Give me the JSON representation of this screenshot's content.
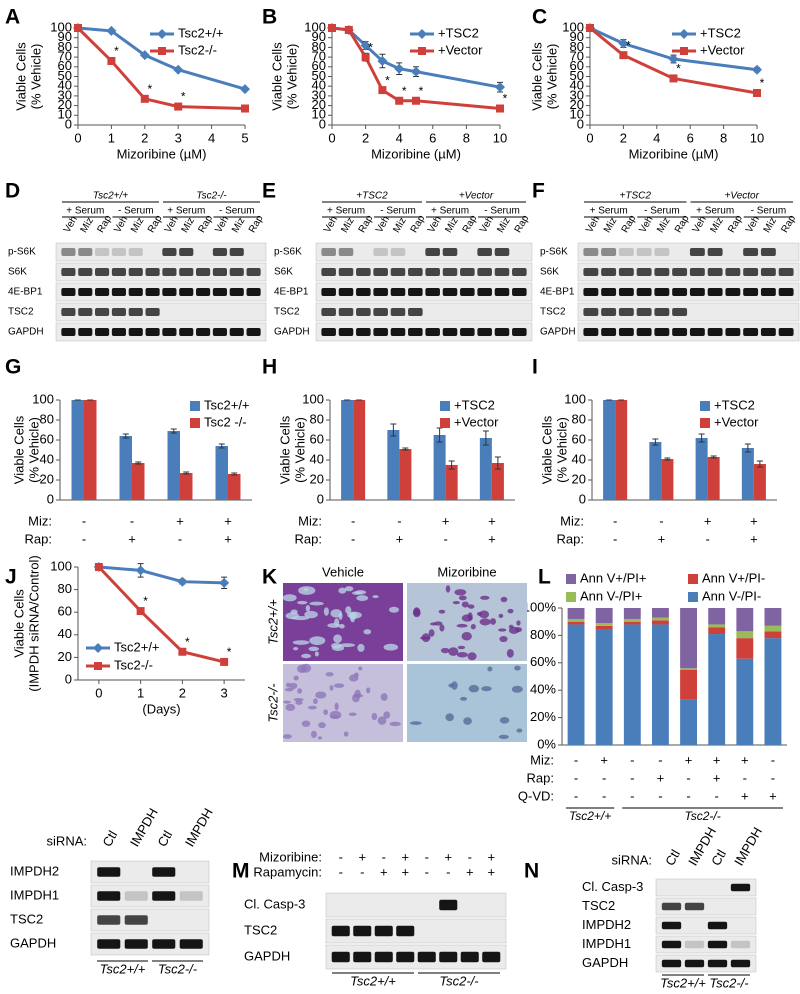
{
  "chart_data": [
    {
      "panel": "A",
      "type": "line",
      "xlabel": "Mizoribine (µM)",
      "ylabel": [
        "Viable Cells",
        "(% Vehicle)"
      ],
      "x": [
        0,
        1,
        2,
        3,
        5
      ],
      "xlim": [
        0,
        5
      ],
      "xticks": [
        0,
        1,
        2,
        3,
        4,
        5
      ],
      "ylim": [
        0,
        100
      ],
      "yticks": [
        0,
        10,
        20,
        30,
        40,
        50,
        60,
        70,
        80,
        90,
        100
      ],
      "legend": "upper right",
      "series": [
        {
          "name": "Tsc2+/+",
          "color": "#4a7ebb",
          "marker": "diamond",
          "values": [
            100,
            97,
            72,
            57,
            37
          ]
        },
        {
          "name": "Tsc2-/-",
          "color": "#d0403a",
          "marker": "square",
          "values": [
            100,
            66,
            27,
            19,
            17
          ]
        }
      ],
      "significance": [
        null,
        "*",
        "*",
        "*",
        null
      ]
    },
    {
      "panel": "B",
      "type": "line",
      "xlabel": "Mizoribine (µM)",
      "ylabel": [
        "Viable Cells",
        "(% Vehicle)"
      ],
      "x": [
        0,
        1,
        2,
        3,
        4,
        5,
        10
      ],
      "xlim": [
        0,
        10
      ],
      "xticks": [
        0,
        2,
        4,
        6,
        8,
        10
      ],
      "ylim": [
        0,
        100
      ],
      "yticks": [
        0,
        10,
        20,
        30,
        40,
        50,
        60,
        70,
        80,
        90,
        100
      ],
      "legend": "upper right",
      "series": [
        {
          "name": "+TSC2",
          "color": "#4a7ebb",
          "marker": "diamond",
          "values": [
            100,
            98,
            82,
            66,
            58,
            55,
            39
          ],
          "errors": [
            0,
            0,
            4,
            7,
            6,
            5,
            5
          ]
        },
        {
          "name": "+Vector",
          "color": "#d0403a",
          "marker": "square",
          "values": [
            100,
            98,
            70,
            36,
            25,
            25,
            17
          ],
          "errors": [
            0,
            0,
            4,
            3,
            2,
            2,
            3
          ]
        }
      ],
      "significance": [
        null,
        null,
        "*",
        "*",
        "*",
        "*",
        "*"
      ]
    },
    {
      "panel": "C",
      "type": "line",
      "xlabel": "Mizoribine (µM)",
      "ylabel": [
        "Viable Cells",
        "(% Vehicle)"
      ],
      "x": [
        0,
        2,
        5,
        10
      ],
      "xlim": [
        0,
        10
      ],
      "xticks": [
        0,
        2,
        4,
        6,
        8,
        10
      ],
      "ylim": [
        0,
        100
      ],
      "yticks": [
        0,
        10,
        20,
        30,
        40,
        50,
        60,
        70,
        80,
        90,
        100
      ],
      "legend": "upper right",
      "series": [
        {
          "name": "+TSC2",
          "color": "#4a7ebb",
          "marker": "diamond",
          "values": [
            100,
            84,
            68,
            57
          ],
          "errors": [
            0,
            4,
            4,
            2
          ]
        },
        {
          "name": "+Vector",
          "color": "#d0403a",
          "marker": "square",
          "values": [
            100,
            72,
            48,
            33
          ],
          "errors": [
            0,
            2,
            2,
            2
          ]
        }
      ],
      "significance": [
        null,
        "*",
        "*",
        "*"
      ]
    },
    {
      "panel": "G",
      "type": "bar",
      "ylabel": [
        "Viable Cells",
        "(% Vehicle)"
      ],
      "categories": [
        null,
        null,
        null,
        null
      ],
      "ylim": [
        0,
        100
      ],
      "yticks": [
        0,
        20,
        40,
        60,
        80,
        100
      ],
      "legend": "upper right",
      "series": [
        {
          "name": "Tsc2+/+",
          "color": "#4a7ebb",
          "values": [
            100,
            64,
            69,
            54
          ],
          "errors": [
            0,
            2,
            2,
            2
          ]
        },
        {
          "name": "Tsc2 -/-",
          "color": "#d0403a",
          "values": [
            100,
            37,
            27,
            26
          ],
          "errors": [
            0,
            1,
            1,
            1
          ]
        }
      ],
      "conditions": [
        {
          "name": "Miz:",
          "values": [
            "-",
            "-",
            "+",
            "+"
          ]
        },
        {
          "name": "Rap:",
          "values": [
            "-",
            "+",
            "-",
            "+"
          ]
        }
      ]
    },
    {
      "panel": "H",
      "type": "bar",
      "ylabel": [
        "Viable Cells",
        "(% Vehicle)"
      ],
      "categories": [
        null,
        null,
        null,
        null
      ],
      "ylim": [
        0,
        100
      ],
      "yticks": [
        0,
        20,
        40,
        60,
        80,
        100
      ],
      "legend": "upper right",
      "series": [
        {
          "name": "+TSC2",
          "color": "#4a7ebb",
          "values": [
            100,
            70,
            65,
            62
          ],
          "errors": [
            0,
            6,
            7,
            7
          ]
        },
        {
          "name": "+Vector",
          "color": "#d0403a",
          "values": [
            100,
            51,
            35,
            37
          ],
          "errors": [
            0,
            1,
            4,
            6
          ]
        }
      ],
      "conditions": [
        {
          "name": "Miz:",
          "values": [
            "-",
            "-",
            "+",
            "+"
          ]
        },
        {
          "name": "Rap:",
          "values": [
            "-",
            "+",
            "-",
            "+"
          ]
        }
      ]
    },
    {
      "panel": "I",
      "type": "bar",
      "ylabel": [
        "Viable Cells",
        "(% Vehicle)"
      ],
      "categories": [
        null,
        null,
        null,
        null
      ],
      "ylim": [
        0,
        100
      ],
      "yticks": [
        0,
        20,
        40,
        60,
        80,
        100
      ],
      "legend": "upper right",
      "series": [
        {
          "name": "+TSC2",
          "color": "#4a7ebb",
          "values": [
            100,
            58,
            62,
            52
          ],
          "errors": [
            0,
            3,
            4,
            4
          ]
        },
        {
          "name": "+Vector",
          "color": "#d0403a",
          "values": [
            100,
            41,
            43,
            36
          ],
          "errors": [
            0,
            1,
            1,
            3
          ]
        }
      ],
      "conditions": [
        {
          "name": "Miz:",
          "values": [
            "-",
            "-",
            "+",
            "+"
          ]
        },
        {
          "name": "Rap:",
          "values": [
            "-",
            "+",
            "-",
            "+"
          ]
        }
      ]
    },
    {
      "panel": "J",
      "type": "line",
      "xlabel": "(Days)",
      "ylabel": [
        "Viable Cells",
        "(IMPDH siRNA/Control)"
      ],
      "x": [
        0,
        1,
        2,
        3
      ],
      "xlim": [
        -0.5,
        3.5
      ],
      "xticks": [
        0,
        1,
        2,
        3
      ],
      "ylim": [
        0,
        100
      ],
      "yticks": [
        0,
        20,
        40,
        60,
        80,
        100
      ],
      "legend": "lower left",
      "series": [
        {
          "name": "Tsc2+/+",
          "color": "#4a7ebb",
          "marker": "diamond",
          "values": [
            100,
            97,
            87,
            86
          ],
          "errors": [
            0,
            6,
            2,
            5
          ]
        },
        {
          "name": "Tsc2-/-",
          "color": "#d0403a",
          "marker": "square",
          "values": [
            100,
            61,
            25,
            16
          ],
          "errors": [
            0,
            2,
            1,
            1
          ]
        }
      ],
      "significance": [
        null,
        "*",
        "*",
        "*"
      ]
    },
    {
      "panel": "L",
      "type": "stacked_bar",
      "categories": [
        null,
        null,
        null,
        null,
        null,
        null,
        null,
        null
      ],
      "ylim": [
        0,
        100
      ],
      "yticks": [
        {
          "value": 0,
          "label": "0%"
        },
        {
          "value": 20,
          "label": "20%"
        },
        {
          "value": 40,
          "label": "40%"
        },
        {
          "value": 60,
          "label": "60%"
        },
        {
          "value": 80,
          "label": "80%"
        },
        {
          "value": 100,
          "label": "100%"
        }
      ],
      "series": [
        {
          "name": "Ann V-/PI-",
          "color": "#4a7ebb",
          "values": [
            88,
            84,
            88,
            88,
            33,
            81,
            63,
            78
          ]
        },
        {
          "name": "Ann V+/PI-",
          "color": "#d0403a",
          "values": [
            2,
            3,
            2,
            3,
            22,
            5,
            15,
            5
          ]
        },
        {
          "name": "Ann V-/PI+",
          "color": "#9bbb59",
          "values": [
            2,
            2,
            2,
            2,
            1,
            2,
            5,
            4
          ]
        },
        {
          "name": "Ann V+/PI+",
          "color": "#8064a2",
          "values": [
            8,
            11,
            8,
            7,
            44,
            12,
            17,
            13
          ]
        }
      ],
      "conditions": [
        {
          "name": "Miz:",
          "values": [
            "-",
            "+",
            "-",
            "-",
            "+",
            "+",
            "+",
            "-"
          ]
        },
        {
          "name": "Rap:",
          "values": [
            "-",
            "-",
            "-",
            "+",
            "-",
            "+",
            "-",
            "-"
          ]
        },
        {
          "name": "Q-VD:",
          "values": [
            "-",
            "-",
            "-",
            "-",
            "-",
            "-",
            "+",
            "+"
          ]
        }
      ],
      "groups": [
        "Tsc2+/+",
        "Tsc2-/-"
      ]
    }
  ],
  "blots": [
    {
      "panel": "D",
      "groups": [
        "Tsc2+/+",
        "Tsc2-/-"
      ],
      "conditions": [
        "+ Serum",
        "- Serum",
        "+ Serum",
        "- Serum"
      ],
      "lanes": [
        "Veh",
        "Miz",
        "Rap",
        "Veh",
        "Miz",
        "Rap",
        "Veh",
        "Miz",
        "Rap",
        "Veh",
        "Miz",
        "Rap"
      ],
      "rows": [
        "p-S6K",
        "S6K",
        "4E-BP1",
        "TSC2",
        "GAPDH"
      ]
    },
    {
      "panel": "E",
      "groups": [
        "+TSC2",
        "+Vector"
      ],
      "conditions": [
        "+ Serum",
        "- Serum",
        "+ Serum",
        "- Serum"
      ],
      "lanes": [
        "Veh",
        "Miz",
        "Rap",
        "Veh",
        "Miz",
        "Rap",
        "Veh",
        "Miz",
        "Rap",
        "Veh",
        "Miz",
        "Rap"
      ],
      "rows": [
        "p-S6K",
        "S6K",
        "4E-BP1",
        "TSC2",
        "GAPDH"
      ]
    },
    {
      "panel": "F",
      "groups": [
        "+TSC2",
        "+Vector"
      ],
      "conditions": [
        "+ Serum",
        "- Serum",
        "+ Serum",
        "- Serum"
      ],
      "lanes": [
        "Veh",
        "Miz",
        "Rap",
        "Veh",
        "Miz",
        "Rap",
        "Veh",
        "Miz",
        "Rap",
        "Veh",
        "Miz",
        "Rap"
      ],
      "rows": [
        "p-S6K",
        "S6K",
        "4E-BP1",
        "TSC2",
        "GAPDH"
      ]
    },
    {
      "header": "siRNA:",
      "lanes": [
        "Ctl",
        "IMPDH",
        "Ctl",
        "IMPDH"
      ],
      "rows": [
        "IMPDH2",
        "IMPDH1",
        "TSC2",
        "GAPDH"
      ],
      "groups": [
        "Tsc2+/+",
        "Tsc2-/-"
      ]
    },
    {
      "panel": "M",
      "treatments": [
        {
          "name": "Mizoribine:",
          "values": [
            "-",
            "+",
            "-",
            "+",
            "-",
            "+",
            "-",
            "+"
          ]
        },
        {
          "name": "Rapamycin:",
          "values": [
            "-",
            "-",
            "+",
            "+",
            "-",
            "-",
            "+",
            "+"
          ]
        }
      ],
      "rows": [
        "Cl. Casp-3",
        "TSC2",
        "GAPDH"
      ],
      "groups": [
        "Tsc2+/+",
        "Tsc2-/-"
      ]
    },
    {
      "panel": "N",
      "header": "siRNA:",
      "lanes": [
        "Ctl",
        "IMPDH",
        "Ctl",
        "IMPDH"
      ],
      "rows": [
        "Cl. Casp-3",
        "TSC2",
        "IMPDH2",
        "IMPDH1",
        "GAPDH"
      ],
      "groups": [
        "Tsc2+/+",
        "Tsc2-/-"
      ]
    }
  ],
  "micrographs": {
    "panel": "K",
    "columns": [
      "Vehicle",
      "Mizoribine"
    ],
    "rows": [
      "Tsc2+/+",
      "Tsc2-/-"
    ]
  }
}
